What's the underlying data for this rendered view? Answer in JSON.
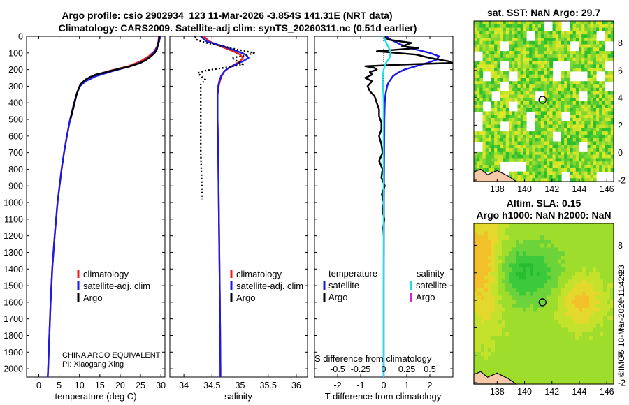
{
  "header": {
    "title_line1": "Argo profile: csio 2902934_123 11-Mar-2026 -3.854S 141.31E (NRT data)",
    "title_line2": "Climatology: CARS2009. Satellite-adj clim: synTS_20260311.nc (0.51d earlier)"
  },
  "colors": {
    "climatology": "#ee1c1c",
    "satellite_adj": "#1a1ae6",
    "argo": "#000000",
    "sat_salinity": "#1ee0ee",
    "argo_salinity_diff": "#e020e0",
    "land": "#f5c8a8"
  },
  "depth_axis": {
    "ylim": [
      0,
      2050
    ],
    "ticks": [
      0,
      100,
      200,
      300,
      400,
      500,
      600,
      700,
      800,
      900,
      1000,
      1100,
      1200,
      1300,
      1400,
      1500,
      1600,
      1700,
      1800,
      1900,
      2000
    ]
  },
  "chart_data": [
    {
      "type": "line",
      "id": "temperature",
      "xlabel": "temperature (deg C)",
      "xlim": [
        -3,
        31
      ],
      "xticks": [
        0,
        5,
        10,
        15,
        20,
        25,
        30
      ],
      "legend": [
        "climatology",
        "satellite-adj. clim",
        "Argo"
      ],
      "credit_line1": "CHINA ARGO EQUIVALENT",
      "credit_line2": "PI: Xiaogang Xing",
      "series": [
        {
          "name": "climatology",
          "style": "solid",
          "depth": [
            0,
            30,
            60,
            90,
            120,
            150,
            180,
            210,
            240,
            270,
            300,
            350,
            400,
            500,
            600,
            700,
            800,
            900,
            1000,
            1200,
            1400,
            1600,
            1800,
            2000,
            2050
          ],
          "values": [
            29.5,
            29.4,
            29.1,
            28.4,
            27.0,
            25.0,
            22.0,
            17.0,
            13.5,
            11.2,
            10.0,
            9.3,
            8.7,
            7.7,
            6.9,
            6.2,
            5.6,
            5.1,
            4.6,
            3.9,
            3.3,
            2.9,
            2.6,
            2.3,
            2.2
          ]
        },
        {
          "name": "satellite-adj. clim",
          "style": "solid",
          "depth": [
            0,
            30,
            60,
            90,
            120,
            150,
            180,
            210,
            240,
            270,
            300,
            350,
            400,
            500,
            600,
            700,
            800,
            900,
            1000,
            1200,
            1400,
            1600,
            1800,
            2000,
            2050
          ],
          "values": [
            29.8,
            29.6,
            29.2,
            28.5,
            27.5,
            25.8,
            22.5,
            18.0,
            14.0,
            11.5,
            10.1,
            9.3,
            8.7,
            7.7,
            6.9,
            6.2,
            5.6,
            5.1,
            4.6,
            3.9,
            3.3,
            2.9,
            2.6,
            2.3,
            2.2
          ]
        },
        {
          "name": "Argo",
          "style": "solid",
          "depth": [
            0,
            20,
            40,
            60,
            80,
            100,
            120,
            140,
            160,
            180,
            200,
            215,
            230,
            245,
            260,
            275,
            290,
            310,
            340,
            380,
            420,
            460,
            500
          ],
          "values": [
            29.6,
            29.5,
            29.4,
            29.2,
            29.0,
            28.5,
            27.6,
            26.5,
            25.0,
            22.5,
            19.0,
            16.5,
            14.0,
            12.6,
            11.5,
            10.8,
            10.2,
            9.9,
            9.4,
            9.0,
            8.6,
            8.2,
            7.8
          ]
        }
      ]
    },
    {
      "type": "line",
      "id": "salinity",
      "xlabel": "salinity",
      "xlim": [
        33.75,
        36.2
      ],
      "xticks": [
        34,
        34.5,
        35,
        35.5,
        36
      ],
      "legend": [
        "climatology",
        "satellite-adj. clim",
        "Argo"
      ],
      "series": [
        {
          "name": "climatology",
          "style": "solid",
          "depth": [
            0,
            30,
            60,
            90,
            110,
            130,
            150,
            170,
            190,
            210,
            240,
            270,
            300,
            350,
            400,
            500,
            700,
            1000,
            1300,
            1600,
            2000,
            2050
          ],
          "values": [
            34.35,
            34.45,
            34.65,
            34.88,
            35.0,
            35.05,
            35.0,
            34.9,
            34.8,
            34.72,
            34.67,
            34.64,
            34.62,
            34.6,
            34.6,
            34.6,
            34.61,
            34.62,
            34.63,
            34.64,
            34.65,
            34.65
          ]
        },
        {
          "name": "satellite-adj. clim",
          "style": "solid",
          "depth": [
            0,
            30,
            60,
            90,
            110,
            130,
            150,
            170,
            190,
            210,
            240,
            270,
            300,
            350,
            400,
            500,
            700,
            1000,
            1300,
            1600,
            2000,
            2050
          ],
          "values": [
            34.3,
            34.4,
            34.7,
            34.95,
            35.1,
            35.15,
            35.05,
            34.92,
            34.8,
            34.72,
            34.66,
            34.63,
            34.61,
            34.6,
            34.6,
            34.6,
            34.61,
            34.62,
            34.63,
            34.64,
            34.65,
            34.65
          ]
        },
        {
          "name": "Argo",
          "style": "dotted",
          "depth": [
            0,
            20,
            40,
            60,
            80,
            100,
            115,
            130,
            150,
            170,
            190,
            205,
            220,
            240,
            260,
            290,
            330,
            400,
            500,
            600,
            700,
            800,
            900,
            980
          ],
          "values": [
            34.2,
            34.22,
            34.4,
            34.7,
            34.95,
            35.25,
            35.1,
            34.85,
            34.95,
            35.05,
            34.7,
            34.4,
            34.25,
            34.3,
            34.38,
            34.3,
            34.3,
            34.3,
            34.3,
            34.3,
            34.3,
            34.31,
            34.32,
            34.32
          ]
        }
      ]
    },
    {
      "type": "line",
      "id": "difference",
      "xlabel": "T difference from climatology",
      "xlim": [
        -3,
        3
      ],
      "xticks": [
        -2,
        -1,
        0,
        1,
        2
      ],
      "xticks_top_label": "S difference from climatology",
      "xticks_top": [
        "-0.5",
        "-0.25",
        "0",
        "0.25",
        "0.5"
      ],
      "legend_headers": [
        "temperature",
        "salinity"
      ],
      "legend_left": [
        "satellite",
        "Argo"
      ],
      "legend_right": [
        "satellite",
        "Argo"
      ],
      "series": [
        {
          "name": "T satellite",
          "style": "solid",
          "color_key": "satellite_adj",
          "depth": [
            0,
            20,
            40,
            60,
            80,
            100,
            120,
            140,
            160,
            180,
            200,
            220,
            240,
            260,
            280,
            300,
            350,
            400,
            500,
            700,
            1000,
            1500,
            2000,
            2050
          ],
          "values": [
            0.1,
            0.3,
            0.6,
            0.9,
            1.4,
            2.0,
            2.4,
            2.3,
            1.9,
            1.4,
            0.9,
            0.6,
            0.4,
            0.3,
            0.2,
            0.15,
            0.08,
            0.05,
            0.03,
            0.02,
            0.01,
            0.0,
            0.0,
            0.0
          ]
        },
        {
          "name": "T Argo",
          "style": "solid",
          "color_key": "argo",
          "depth": [
            0,
            20,
            40,
            60,
            70,
            90,
            110,
            130,
            150,
            160,
            170,
            180,
            190,
            200,
            215,
            230,
            250,
            270,
            300,
            330,
            360,
            400,
            440,
            480,
            520,
            560,
            600,
            650,
            700,
            750,
            800,
            850,
            900,
            950,
            1000,
            1050,
            1100,
            1150,
            1200
          ],
          "values": [
            0.0,
            0.2,
            1.2,
            0.8,
            1.5,
            -0.3,
            1.4,
            2.0,
            2.8,
            3.0,
            0.8,
            -0.8,
            -0.4,
            -0.3,
            -0.6,
            -0.5,
            -0.8,
            -0.5,
            -0.7,
            -0.6,
            -0.4,
            -0.3,
            -0.2,
            -0.2,
            -0.1,
            -0.1,
            -0.2,
            -0.1,
            -0.05,
            -0.2,
            -0.05,
            -0.1,
            0.05,
            -0.08,
            0.0,
            -0.05,
            0.03,
            -0.02,
            0.0
          ]
        },
        {
          "name": "S satellite",
          "style": "solid",
          "color_key": "sat_salinity",
          "depth": [
            0,
            20,
            50,
            80,
            100,
            130,
            160,
            200,
            250,
            300,
            400,
            600,
            1000,
            1500,
            2000,
            2050
          ],
          "values": [
            0.0,
            0.05,
            0.15,
            0.25,
            0.3,
            0.25,
            0.1,
            0.0,
            -0.05,
            -0.03,
            0.0,
            0.0,
            0.0,
            0.0,
            0.0,
            0.0
          ]
        }
      ]
    }
  ],
  "maps": {
    "sst_title": "sat. SST: NaN Argo: 29.7",
    "sla_title1": "Altim. SLA: 0.15",
    "sla_title2": "Argo h1000: NaN h2000: NaN",
    "lon_ticks": [
      "138",
      "140",
      "142",
      "144",
      "146"
    ],
    "lat_ticks": [
      "-2",
      "0",
      "2",
      "4",
      "6",
      "8"
    ],
    "float_lon": 141.31,
    "float_lat": 3.854
  },
  "watermark": "©IMOS 18-Mar-2026 11:42:23"
}
